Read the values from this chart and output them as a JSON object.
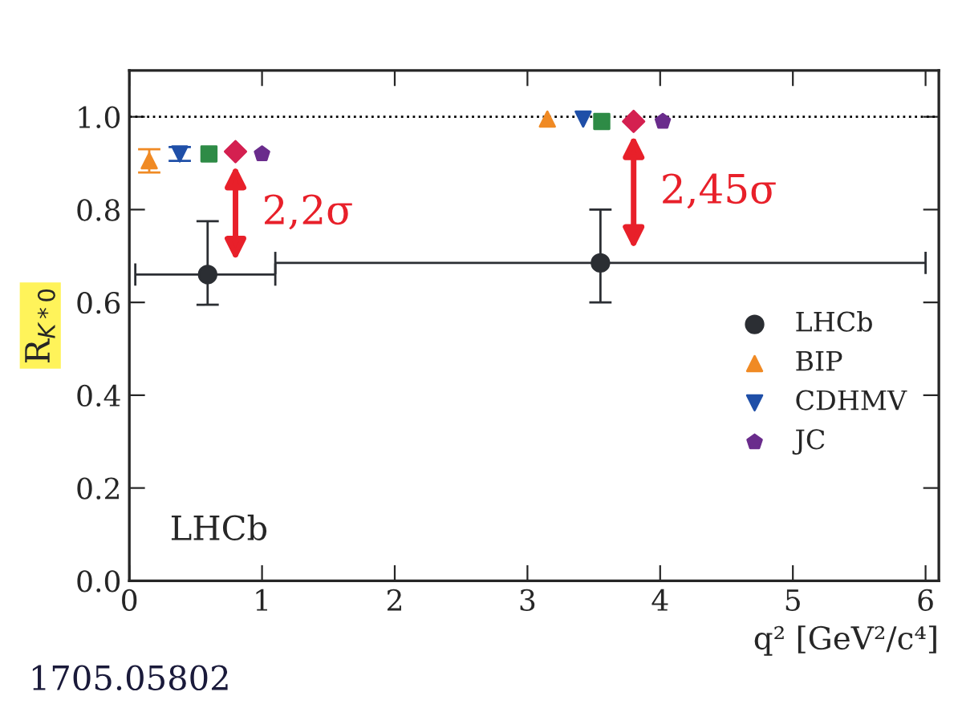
{
  "chart_data": {
    "type": "scatter",
    "ylabel": "R$_{K*0}$",
    "xlabel": "q² [GeV²/c⁴]",
    "xlim": [
      0,
      6.1
    ],
    "ylim": [
      0,
      1.1
    ],
    "xticks": [
      0,
      1,
      2,
      3,
      4,
      5,
      6
    ],
    "yticks": [
      {
        "value": 0,
        "label": "0.0"
      },
      {
        "value": 0.2,
        "label": "0.2"
      },
      {
        "value": 0.4,
        "label": "0.4"
      },
      {
        "value": 0.6,
        "label": "0.6"
      },
      {
        "value": 0.8,
        "label": "0.8"
      },
      {
        "value": 1.0,
        "label": "1.0"
      }
    ],
    "legend": "bottom right",
    "grid": false,
    "series": [
      {
        "name": "LHCb",
        "color": "#2b2e33",
        "marker": "circle",
        "x": [
          0.59,
          3.55
        ],
        "values": [
          0.66,
          0.685
        ],
        "errors": [
          [
            0.595,
            0.775
          ],
          [
            0.6,
            0.8
          ]
        ],
        "xerrors": [
          [
            0.045,
            1.1
          ],
          [
            1.1,
            6.0
          ]
        ]
      },
      {
        "name": "BIP",
        "color": "#f08a24",
        "marker": "triangle",
        "x": [
          0.15,
          3.15
        ],
        "values": [
          0.905,
          0.995
        ],
        "errors": [
          [
            0.88,
            0.93
          ],
          null
        ]
      },
      {
        "name": "CDHMV",
        "color": "#1f4fa8",
        "marker": "triangle_down",
        "x": [
          0.38,
          3.42
        ],
        "values": [
          0.92,
          0.995
        ],
        "errors": [
          [
            0.905,
            0.935
          ],
          null
        ]
      },
      {
        "color": "#2e8b46",
        "marker": "square",
        "x": [
          0.6,
          3.56
        ],
        "values": [
          0.92,
          0.99
        ]
      },
      {
        "color": "#d42050",
        "marker": "diamond",
        "x": [
          0.8,
          3.8
        ],
        "values": [
          0.925,
          0.99
        ]
      },
      {
        "name": "JC",
        "color": "#6a2c8c",
        "x": [
          1.0,
          4.02
        ],
        "values": [
          0.92,
          0.99
        ]
      }
    ],
    "ref_lines": [
      {
        "axis": "y",
        "value": 1.0,
        "color": "#000000",
        "line_style": "dotted"
      }
    ],
    "annotations": [
      "LHCb",
      "2,2σ",
      "2,45σ",
      "1705.05802"
    ]
  }
}
